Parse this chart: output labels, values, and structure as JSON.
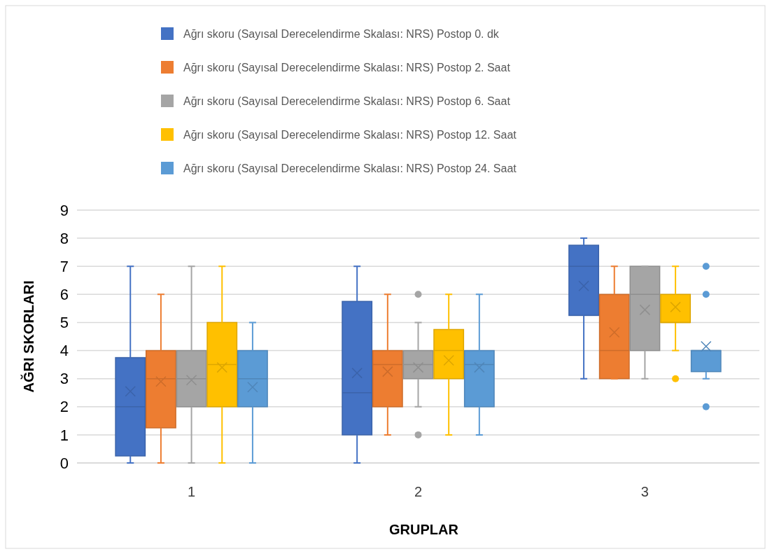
{
  "chart_data": {
    "type": "box",
    "xlabel": "GRUPLAR",
    "ylabel": "AĞRI SKORLARI",
    "categories": [
      "1",
      "2",
      "3"
    ],
    "ylim": [
      0,
      9
    ],
    "yticks": [
      0,
      1,
      2,
      3,
      4,
      5,
      6,
      7,
      8,
      9
    ],
    "grid": "y",
    "legend": "top",
    "series": [
      {
        "name": "Ağrı skoru (Sayısal Derecelendirme Skalası: NRS) Postop 0. dk",
        "color": "#4472c4",
        "boxes": [
          {
            "low": 0,
            "q1": 0.25,
            "median": 2,
            "q3": 3.75,
            "high": 7,
            "mean": 2.55
          },
          {
            "low": 0,
            "q1": 1,
            "median": 2.5,
            "q3": 5.75,
            "high": 7,
            "mean": 3.2
          },
          {
            "low": 3,
            "q1": 5.25,
            "median": 7,
            "q3": 7.75,
            "high": 8,
            "mean": 6.3
          }
        ]
      },
      {
        "name": "Ağrı skoru (Sayısal Derecelendirme Skalası: NRS) Postop 2. Saat",
        "color": "#ed7d31",
        "boxes": [
          {
            "low": 0,
            "q1": 1.25,
            "median": 3,
            "q3": 4,
            "high": 6,
            "mean": 2.9
          },
          {
            "low": 1,
            "q1": 2,
            "median": 3.5,
            "q3": 4,
            "high": 6,
            "mean": 3.25
          },
          {
            "low": 3,
            "q1": 3,
            "median": 4,
            "q3": 6,
            "high": 7,
            "mean": 4.65
          }
        ]
      },
      {
        "name": "Ağrı skoru (Sayısal Derecelendirme Skalası: NRS) Postop 6. Saat",
        "color": "#a5a5a5",
        "boxes": [
          {
            "low": 0,
            "q1": 2,
            "median": 3,
            "q3": 4,
            "high": 7,
            "mean": 2.95
          },
          {
            "low": 2,
            "q1": 3,
            "median": 3.5,
            "q3": 4,
            "high": 5,
            "mean": 3.4,
            "outliers": [
              6,
              1
            ]
          },
          {
            "low": 3,
            "q1": 4,
            "median": 6,
            "q3": 7,
            "high": 7,
            "mean": 5.45
          }
        ]
      },
      {
        "name": "Ağrı skoru (Sayısal Derecelendirme Skalası: NRS) Postop 12. Saat",
        "color": "#ffc000",
        "boxes": [
          {
            "low": 0,
            "q1": 2,
            "median": 3.5,
            "q3": 5,
            "high": 7,
            "mean": 3.4
          },
          {
            "low": 1,
            "q1": 3,
            "median": 4,
            "q3": 4.75,
            "high": 6,
            "mean": 3.65
          },
          {
            "low": 4,
            "q1": 5,
            "median": 5,
            "q3": 6,
            "high": 7,
            "mean": 5.55,
            "outliers": [
              3
            ]
          }
        ]
      },
      {
        "name": "Ağrı skoru (Sayısal Derecelendirme Skalası: NRS) Postop 24. Saat",
        "color": "#5b9bd5",
        "boxes": [
          {
            "low": 0,
            "q1": 2,
            "median": 3,
            "q3": 4,
            "high": 5,
            "mean": 2.7
          },
          {
            "low": 1,
            "q1": 2,
            "median": 3.5,
            "q3": 4,
            "high": 6,
            "mean": 3.4
          },
          {
            "low": 3,
            "q1": 3.25,
            "median": 4,
            "q3": 4,
            "high": 4,
            "mean": 4.15,
            "outliers": [
              7,
              6,
              2
            ]
          }
        ]
      }
    ]
  }
}
